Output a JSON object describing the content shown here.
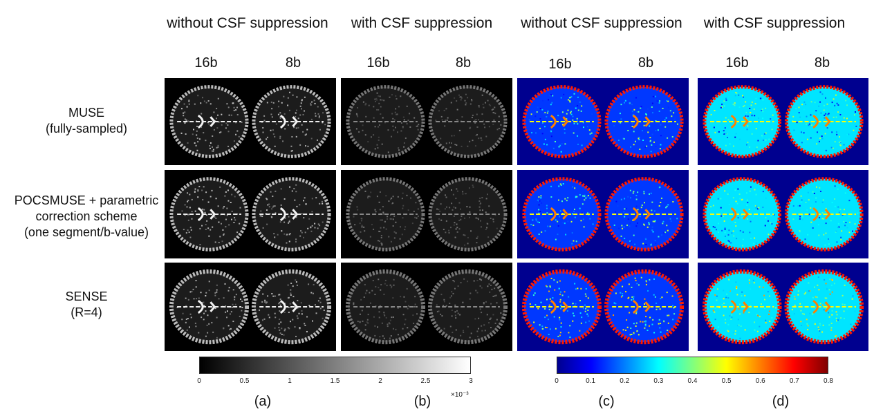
{
  "column_headers": {
    "a": "without CSF suppression",
    "b": "with CSF suppression",
    "c": "without CSF suppression",
    "d": "with CSF suppression"
  },
  "sub_headers": [
    "16b",
    "8b",
    "16b",
    "8b",
    "16b",
    "8b",
    "16b",
    "8b"
  ],
  "row_labels": [
    {
      "line1": "MUSE",
      "line2": "(fully-sampled)",
      "line3": "",
      "line4": ""
    },
    {
      "line1": "POCSMUSE + parametric",
      "line2": "correction scheme",
      "line3": "(one segment/b-value)",
      "line4": ""
    },
    {
      "line1": "SENSE",
      "line2": "(R=4)",
      "line3": "",
      "line4": ""
    }
  ],
  "gray_colorbar": {
    "ticks": [
      "0",
      "0.5",
      "1",
      "1.5",
      "2",
      "2.5",
      "3"
    ],
    "exponent": "×10⁻³"
  },
  "jet_colorbar": {
    "ticks": [
      "0",
      "0.1",
      "0.2",
      "0.3",
      "0.4",
      "0.5",
      "0.6",
      "0.7",
      "0.8"
    ]
  },
  "panel_labels": [
    "(a)",
    "(b)",
    "(c)",
    "(d)"
  ],
  "colors": {
    "gray_bg": "#000000",
    "jet_bg": "#00008f"
  }
}
